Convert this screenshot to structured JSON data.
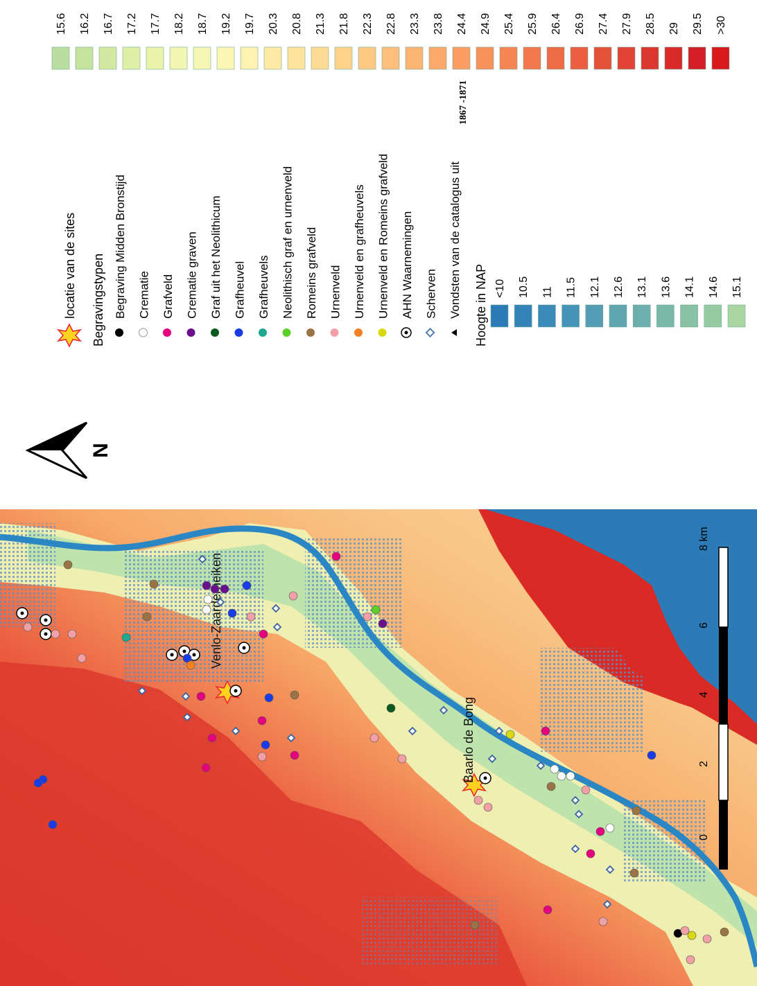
{
  "legend": {
    "site_location": "locatie van de sites",
    "burial_header": "Begravingstypen",
    "burial_types": [
      {
        "label": "Begraving Midden Bronstijd",
        "symbol": "dot",
        "color": "#000000"
      },
      {
        "label": "Crematie",
        "symbol": "dot",
        "color": "#ffffff"
      },
      {
        "label": "Grafveld",
        "symbol": "dot",
        "color": "#e6007e"
      },
      {
        "label": "Crematie graven",
        "symbol": "dot",
        "color": "#6a0f8e"
      },
      {
        "label": "Graf uit het Neolithicum",
        "symbol": "dot",
        "color": "#0d5a1e"
      },
      {
        "label": "Grafheuvel",
        "symbol": "dot",
        "color": "#1a3ce6"
      },
      {
        "label": "Grafheuvels",
        "symbol": "dot",
        "color": "#1fa88f"
      },
      {
        "label": "Neolithisch graf en urnenveld",
        "symbol": "dot",
        "color": "#5ccf2b"
      },
      {
        "label": "Romeins grafveld",
        "symbol": "dot",
        "color": "#9a7445"
      },
      {
        "label": "Urnenveld",
        "symbol": "dot",
        "color": "#f2a0a8"
      },
      {
        "label": "Urnenveld en grafheuvels",
        "symbol": "dot",
        "color": "#f58220"
      },
      {
        "label": "Urnenveld en Romeins grafveld",
        "symbol": "dot",
        "color": "#d9d910"
      },
      {
        "label": "AHN Waarnemingen",
        "symbol": "target",
        "color": "#000000"
      },
      {
        "label": "Scherven",
        "symbol": "diamond",
        "color": "#5a7fa8"
      },
      {
        "label": "Vondsten van de catalogus uit",
        "symbol": "triangle",
        "color": "#000000",
        "suffix": "1867 -1871"
      }
    ],
    "elevation_header": "Hoogte in NAP",
    "elevation_classes": [
      {
        "label": "<10",
        "color": "#2c7bb6"
      },
      {
        "label": "10.5",
        "color": "#3383b8"
      },
      {
        "label": "11",
        "color": "#3a8bb9"
      },
      {
        "label": "11.5",
        "color": "#4593b7"
      },
      {
        "label": "12.1",
        "color": "#529cb4"
      },
      {
        "label": "12.6",
        "color": "#5fa6b1"
      },
      {
        "label": "13.1",
        "color": "#6cafac"
      },
      {
        "label": "13.6",
        "color": "#7ab8a8"
      },
      {
        "label": "14.1",
        "color": "#89c1a4"
      },
      {
        "label": "14.6",
        "color": "#98caa2"
      },
      {
        "label": "15.1",
        "color": "#a8d5a0"
      },
      {
        "label": "15.6",
        "color": "#b8dd9f"
      },
      {
        "label": "16.2",
        "color": "#c6e39f"
      },
      {
        "label": "16.7",
        "color": "#d3e9a1"
      },
      {
        "label": "17.2",
        "color": "#dfefa5"
      },
      {
        "label": "17.7",
        "color": "#e9f3aa"
      },
      {
        "label": "18.2",
        "color": "#f1f6b0"
      },
      {
        "label": "18.7",
        "color": "#f6f7b4"
      },
      {
        "label": "19.2",
        "color": "#fbf6b4"
      },
      {
        "label": "19.7",
        "color": "#fef2b0"
      },
      {
        "label": "20.3",
        "color": "#feeaa6"
      },
      {
        "label": "20.8",
        "color": "#fee39d"
      },
      {
        "label": "21.3",
        "color": "#fedb94"
      },
      {
        "label": "21.8",
        "color": "#fed28b"
      },
      {
        "label": "22.3",
        "color": "#fdc983"
      },
      {
        "label": "22.8",
        "color": "#fdbf7b"
      },
      {
        "label": "23.3",
        "color": "#fcb473"
      },
      {
        "label": "23.8",
        "color": "#fca96b"
      },
      {
        "label": "24.4",
        "color": "#fb9d63"
      },
      {
        "label": "24.9",
        "color": "#f9915b"
      },
      {
        "label": "25.4",
        "color": "#f68554"
      },
      {
        "label": "25.9",
        "color": "#f3784d"
      },
      {
        "label": "26.4",
        "color": "#ef6b46"
      },
      {
        "label": "26.9",
        "color": "#eb5e40"
      },
      {
        "label": "27.4",
        "color": "#e6513a"
      },
      {
        "label": "27.9",
        "color": "#e14434"
      },
      {
        "label": "28.5",
        "color": "#dc372f"
      },
      {
        "label": "29",
        "color": "#d82a2a"
      },
      {
        "label": "29.5",
        "color": "#d51f26"
      },
      {
        "label": ">30",
        "color": "#d7191c"
      }
    ]
  },
  "map": {
    "site_labels": [
      "Venlo-Zaarderheiken",
      "Baarlo de Bong"
    ],
    "scale": {
      "ticks": [
        "0",
        "2",
        "4",
        "6",
        "8 km"
      ]
    },
    "north": "N",
    "colors": {
      "river": "#2b86c4",
      "sea": "#2c7bb6",
      "high": "#d92a25",
      "mid": "#f5a56a",
      "low": "#f4f3b5",
      "valley": "#b9e0a9",
      "urban": "#4a8ac2"
    }
  }
}
